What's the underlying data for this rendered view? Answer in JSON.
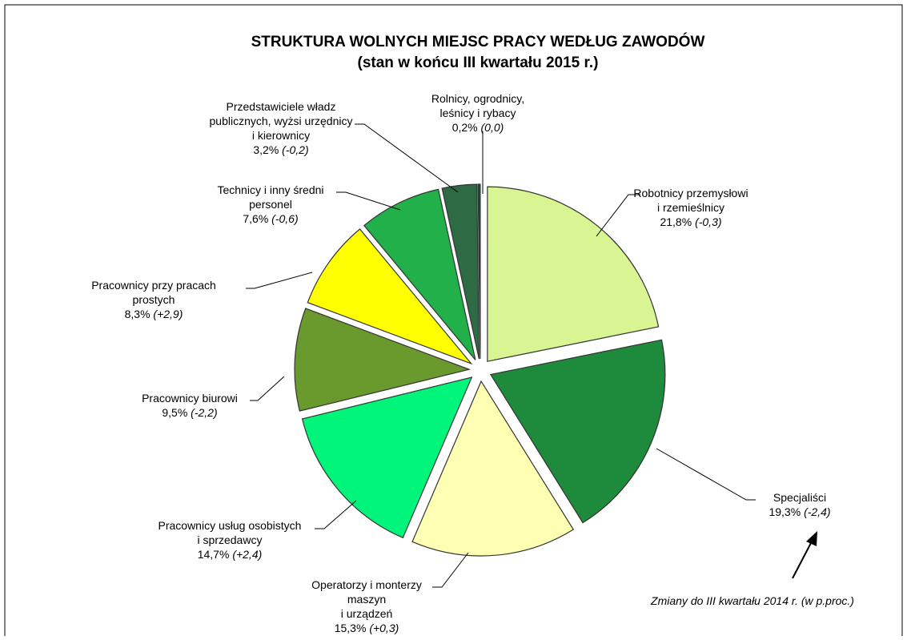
{
  "chart_data": {
    "type": "pie",
    "title": "STRUKTURA WOLNYCH MIEJSC PRACY WEDŁUG ZAWODÓW",
    "subtitle": "(stan w końcu III kwartału 2015 r.)",
    "categories": [
      "Robotnicy przemysłowi\ni rzemieślnicy",
      "Specjaliści",
      "Operatorzy i monterzy\nmaszyn\ni urządzeń",
      "Pracownicy usług osobistych\ni sprzedawcy",
      "Pracownicy biurowi",
      "Pracownicy przy pracach\nprostych",
      "Technicy i inny średni\npersonel",
      "Przedstawiciele władz\npublicznych, wyżsi urzędnicy\ni kierownicy",
      "Rolnicy, ogrodnicy,\nleśnicy i rybacy"
    ],
    "values": [
      21.8,
      19.3,
      15.3,
      14.7,
      9.5,
      8.3,
      7.6,
      3.2,
      0.2
    ],
    "value_labels": [
      "21,8%",
      "19,3%",
      "15,3%",
      "14,7%",
      "9,5%",
      "8,3%",
      "7,6%",
      "3,2%",
      "0,2%"
    ],
    "changes": [
      "(-0,3)",
      "(-2,4)",
      "(+0,3)",
      "(+2,4)",
      "(-2,2)",
      "(+2,9)",
      "(-0,6)",
      "(-0,2)",
      "(0,0)"
    ],
    "colors": [
      "#d9f593",
      "#1e8a3c",
      "#ffffb3",
      "#00f57a",
      "#6a9a2e",
      "#ffff00",
      "#22b04a",
      "#2e6b45",
      "#1a4d2e"
    ],
    "annotation": "Zmiany do III kwartału 2014 r. (w p.proc.)"
  }
}
